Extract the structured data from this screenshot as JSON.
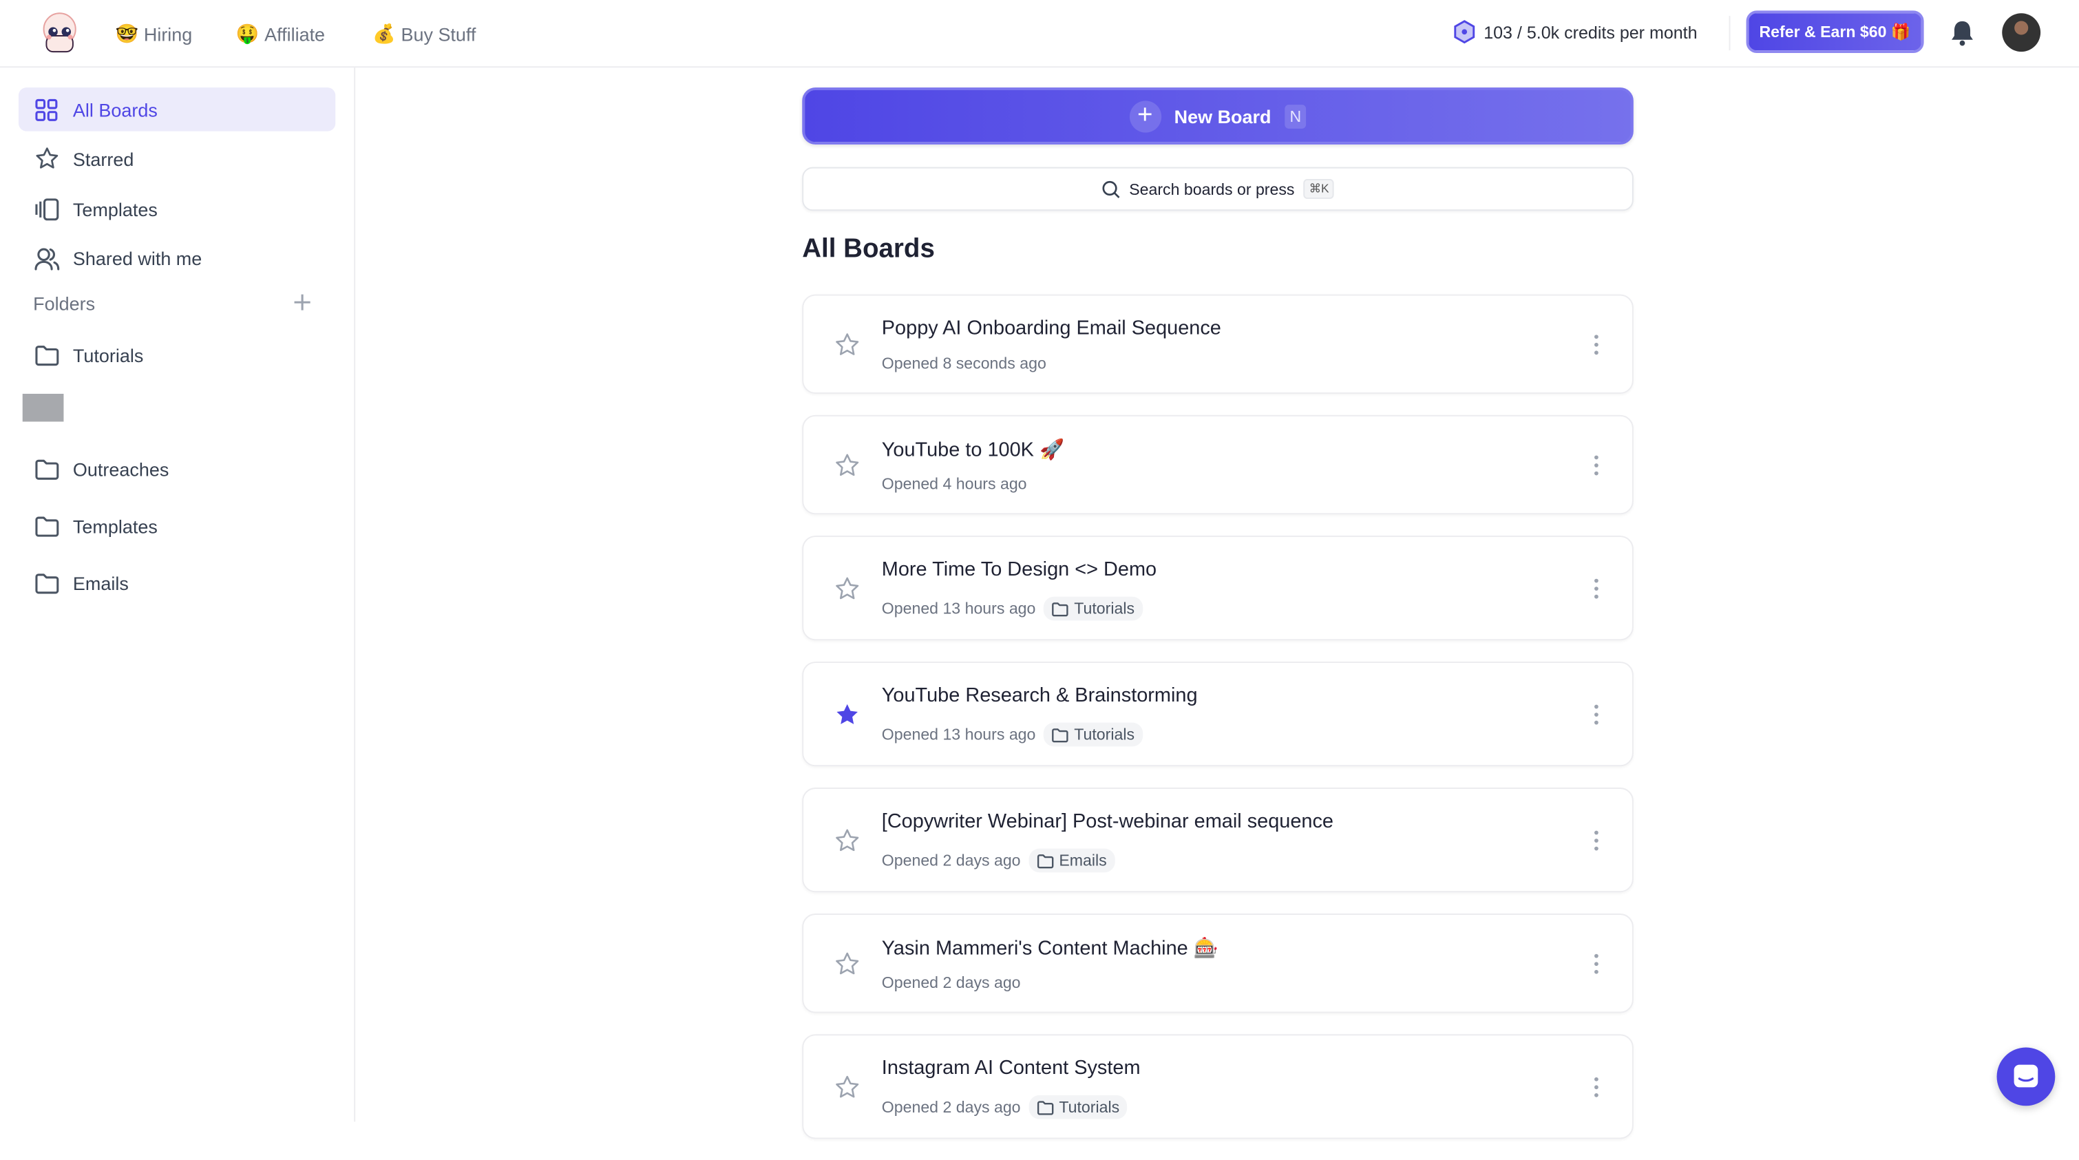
{
  "header": {
    "nav": [
      {
        "emoji": "🤓",
        "label": "Hiring"
      },
      {
        "emoji": "🤑",
        "label": "Affiliate"
      },
      {
        "emoji": "💰",
        "label": "Buy Stuff"
      }
    ],
    "credits": "103 / 5.0k credits per month",
    "refer_label": "Refer & Earn $60 🎁",
    "icons": {
      "logo": "octopus-mascot-logo",
      "bell": "bell-icon",
      "avatar": "user-avatar"
    }
  },
  "sidebar": {
    "items": [
      {
        "label": "All Boards",
        "icon": "grid-icon",
        "active": true
      },
      {
        "label": "Starred",
        "icon": "star-icon"
      },
      {
        "label": "Templates",
        "icon": "templates-icon"
      },
      {
        "label": "Shared with me",
        "icon": "users-icon"
      }
    ],
    "folders_label": "Folders",
    "folders": [
      "Tutorials",
      "Outreaches",
      "Templates",
      "Emails"
    ]
  },
  "main": {
    "new_board_label": "New Board",
    "new_board_shortcut": "N",
    "search_placeholder": "Search boards or press",
    "search_shortcut": "⌘K",
    "heading": "All Boards",
    "boards": [
      {
        "title": "Poppy AI Onboarding Email Sequence",
        "opened": "Opened 8 seconds ago",
        "folder": null,
        "starred": false
      },
      {
        "title": "YouTube to 100K 🚀",
        "opened": "Opened 4 hours ago",
        "folder": null,
        "starred": false
      },
      {
        "title": "More Time To Design <> Demo",
        "opened": "Opened 13 hours ago",
        "folder": "Tutorials",
        "starred": false
      },
      {
        "title": "YouTube Research & Brainstorming",
        "opened": "Opened 13 hours ago",
        "folder": "Tutorials",
        "starred": true
      },
      {
        "title": "[Copywriter Webinar] Post-webinar email sequence",
        "opened": "Opened 2 days ago",
        "folder": "Emails",
        "starred": false
      },
      {
        "title": "Yasin Mammeri's Content Machine 🎰",
        "opened": "Opened 2 days ago",
        "folder": null,
        "starred": false
      },
      {
        "title": "Instagram AI Content System",
        "opened": "Opened 2 days ago",
        "folder": "Tutorials",
        "starred": false
      }
    ]
  },
  "colors": {
    "accent": "#4f46e5",
    "active_bg": "#ecebfb",
    "muted": "#6b7280"
  }
}
